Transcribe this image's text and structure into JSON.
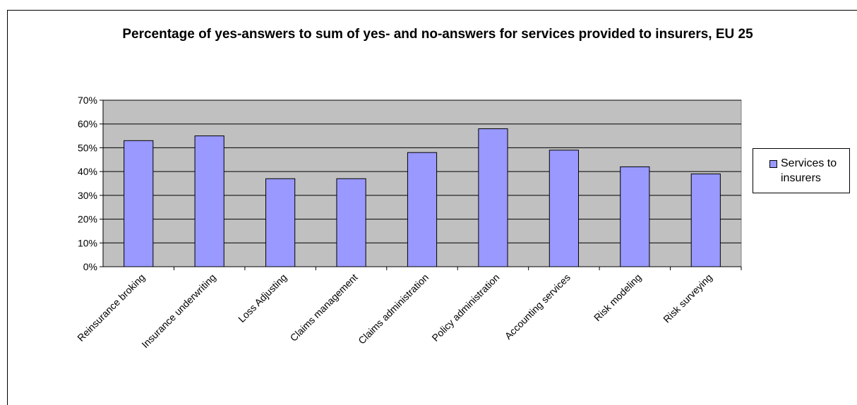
{
  "chart_data": {
    "type": "bar",
    "title": "Percentage of yes-answers to sum of yes- and no-answers for services provided to insurers, EU 25",
    "categories": [
      "Reinsurance broking",
      "Insurance underwriting",
      "Loss Adjusting",
      "Claims management",
      "Claims administration",
      "Policy administration",
      "Accounting services",
      "Risk modeling",
      "Risk surveying"
    ],
    "series": [
      {
        "name": "Services to insurers",
        "values": [
          53,
          55,
          37,
          37,
          48,
          58,
          49,
          42,
          39
        ],
        "color": "#9999ff"
      }
    ],
    "yticks": [
      "0%",
      "10%",
      "20%",
      "30%",
      "40%",
      "50%",
      "60%",
      "70%"
    ],
    "ylim": [
      0,
      70
    ],
    "grid": true,
    "plot_background": "#c0c0c0",
    "legend_position": "right"
  }
}
